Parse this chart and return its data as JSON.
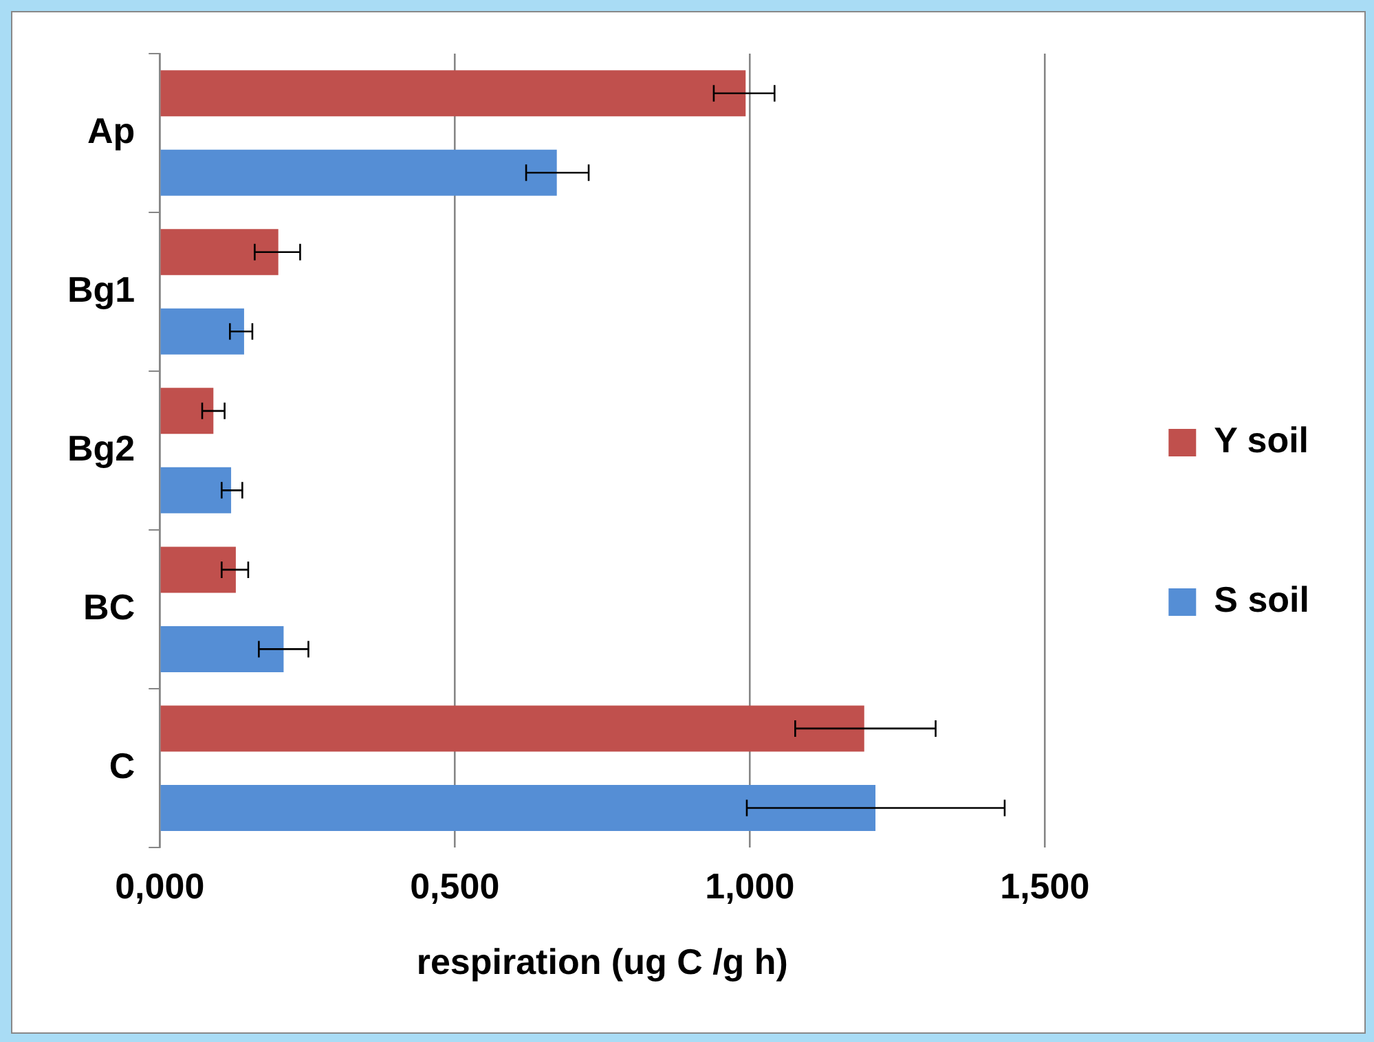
{
  "chart_data": {
    "type": "bar",
    "orientation": "horizontal",
    "xlabel": "respiration (ug C /g h)",
    "categories": [
      "Ap",
      "Bg1",
      "Bg2",
      "BC",
      "C"
    ],
    "series": [
      {
        "name": "Y soil",
        "color": "#c0504d",
        "values": [
          0.993,
          0.201,
          0.091,
          0.129,
          1.194
        ],
        "errors": [
          [
            0.939,
            1.042
          ],
          [
            0.161,
            0.238
          ],
          [
            0.072,
            0.11
          ],
          [
            0.105,
            0.15
          ],
          [
            1.077,
            1.315
          ]
        ]
      },
      {
        "name": "S soil",
        "color": "#558ed5",
        "values": [
          0.673,
          0.143,
          0.121,
          0.21,
          1.213
        ],
        "errors": [
          [
            0.621,
            0.727
          ],
          [
            0.119,
            0.157
          ],
          [
            0.105,
            0.14
          ],
          [
            0.168,
            0.252
          ],
          [
            0.995,
            1.432
          ]
        ]
      }
    ],
    "xlim": [
      0,
      1.5
    ],
    "xticks": [
      {
        "value": 0,
        "label": "0,000"
      },
      {
        "value": 0.5,
        "label": "0,500"
      },
      {
        "value": 1,
        "label": "1,000"
      },
      {
        "value": 1.5,
        "label": "1,500"
      }
    ],
    "grid": "x",
    "legend": "right"
  }
}
